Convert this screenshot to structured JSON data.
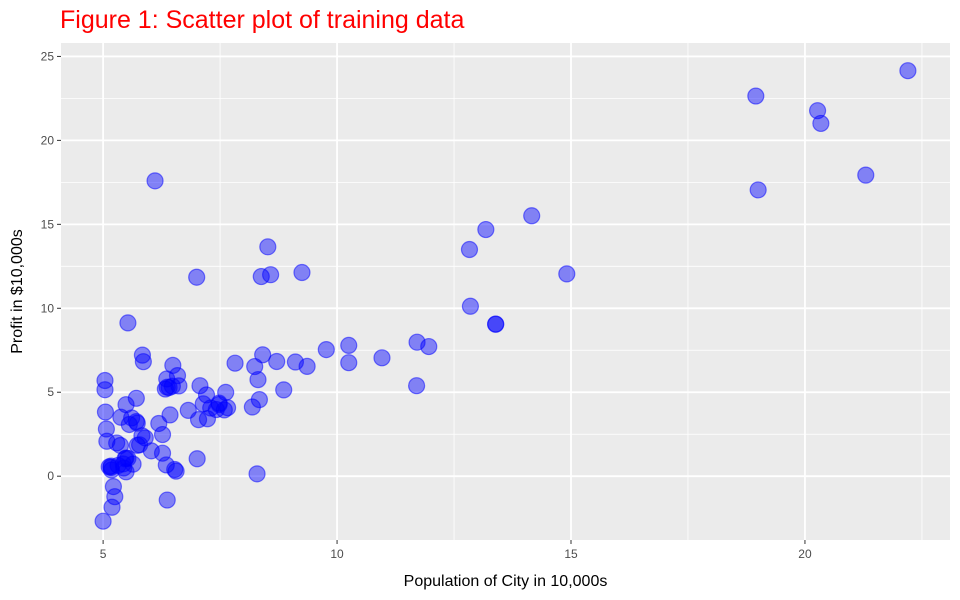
{
  "chart_data": {
    "type": "scatter",
    "title": "Figure 1: Scatter plot of training data",
    "xlabel": "Population of City in 10,000s",
    "ylabel": "Profit in $10,000s",
    "xlim": [
      4.1,
      23.1
    ],
    "ylim": [
      -3.8,
      25.8
    ],
    "x_ticks": [
      5,
      10,
      15,
      20
    ],
    "y_ticks": [
      0,
      5,
      10,
      15,
      20,
      25
    ],
    "x_minor_ticks": [
      7.5,
      12.5,
      17.5,
      22.5
    ],
    "y_minor_ticks": [
      2.5,
      7.5,
      12.5,
      17.5,
      22.5
    ],
    "grid": true,
    "legend": "none",
    "point_color": "#0000ff",
    "panel_background": "#ebebeb",
    "series": [
      {
        "points": [
          [
            6.11,
            17.59
          ],
          [
            5.53,
            9.13
          ],
          [
            8.52,
            13.66
          ],
          [
            7.0,
            11.85
          ],
          [
            5.86,
            6.82
          ],
          [
            8.38,
            11.89
          ],
          [
            7.48,
            4.35
          ],
          [
            8.58,
            12.0
          ],
          [
            6.49,
            6.6
          ],
          [
            5.05,
            3.82
          ],
          [
            5.71,
            3.25
          ],
          [
            14.16,
            15.51
          ],
          [
            5.73,
            3.16
          ],
          [
            8.41,
            7.23
          ],
          [
            5.64,
            0.72
          ],
          [
            5.38,
            3.51
          ],
          [
            6.37,
            5.3
          ],
          [
            5.13,
            0.56
          ],
          [
            6.43,
            3.65
          ],
          [
            7.07,
            5.39
          ],
          [
            6.19,
            3.14
          ],
          [
            20.27,
            21.77
          ],
          [
            5.49,
            4.26
          ],
          [
            6.33,
            5.19
          ],
          [
            5.56,
            3.08
          ],
          [
            18.95,
            22.64
          ],
          [
            12.83,
            13.5
          ],
          [
            10.96,
            7.05
          ],
          [
            13.18,
            14.69
          ],
          [
            22.2,
            24.15
          ],
          [
            5.25,
            -1.22
          ],
          [
            6.59,
            5.99
          ],
          [
            9.25,
            12.13
          ],
          [
            5.19,
            -1.85
          ],
          [
            9.36,
            6.54
          ],
          [
            8.34,
            4.56
          ],
          [
            5.04,
            5.7
          ],
          [
            5.43,
            0.73
          ],
          [
            5.22,
            -0.62
          ],
          [
            6.82,
            3.92
          ],
          [
            7.21,
            4.84
          ],
          [
            5.17,
            0.52
          ],
          [
            6.36,
            5.79
          ],
          [
            5.04,
            5.15
          ],
          [
            5.0,
            -2.68
          ],
          [
            9.11,
            6.8
          ],
          [
            7.48,
            4.27
          ],
          [
            8.31,
            5.75
          ],
          [
            11.71,
            7.98
          ],
          [
            11.96,
            7.72
          ],
          [
            10.25,
            6.76
          ],
          [
            5.53,
            1.06
          ],
          [
            6.03,
            1.51
          ],
          [
            5.71,
            4.64
          ],
          [
            5.17,
            0.6
          ],
          [
            5.07,
            2.81
          ],
          [
            5.73,
            1.84
          ],
          [
            11.7,
            5.39
          ],
          [
            5.83,
            2.41
          ],
          [
            5.37,
            1.83
          ],
          [
            5.49,
            1.08
          ],
          [
            5.78,
            1.87
          ],
          [
            7.04,
            3.37
          ],
          [
            7.82,
            6.73
          ],
          [
            6.56,
            0.3
          ],
          [
            9.77,
            7.54
          ],
          [
            6.62,
            5.38
          ],
          [
            7.01,
            1.04
          ],
          [
            8.29,
            0.14
          ],
          [
            6.53,
            0.4
          ],
          [
            5.08,
            2.08
          ],
          [
            5.29,
            1.98
          ],
          [
            6.27,
            2.48
          ],
          [
            7.3,
            4.06
          ],
          [
            6.27,
            1.37
          ],
          [
            10.25,
            7.79
          ],
          [
            8.86,
            5.14
          ],
          [
            7.23,
            3.42
          ],
          [
            6.35,
            0.67
          ],
          [
            7.62,
            4.99
          ],
          [
            8.19,
            4.12
          ],
          [
            7.14,
            4.31
          ],
          [
            5.49,
            0.26
          ],
          [
            12.85,
            10.12
          ],
          [
            13.39,
            9.06
          ],
          [
            13.39,
            9.05
          ],
          [
            14.91,
            12.05
          ],
          [
            7.42,
            3.97
          ],
          [
            8.71,
            6.83
          ],
          [
            6.41,
            5.28
          ],
          [
            8.24,
            6.53
          ],
          [
            19.0,
            17.05
          ],
          [
            21.3,
            17.93
          ],
          [
            20.34,
            21.01
          ],
          [
            6.37,
            -1.42
          ],
          [
            5.9,
            2.28
          ],
          [
            5.32,
            0.64
          ],
          [
            5.18,
            0.37
          ],
          [
            5.47,
            1.04
          ],
          [
            5.61,
            3.47
          ],
          [
            5.84,
            7.21
          ],
          [
            6.48,
            5.36
          ],
          [
            7.59,
            3.95
          ],
          [
            7.66,
            4.08
          ],
          [
            5.44,
            0.49
          ]
        ]
      }
    ]
  }
}
